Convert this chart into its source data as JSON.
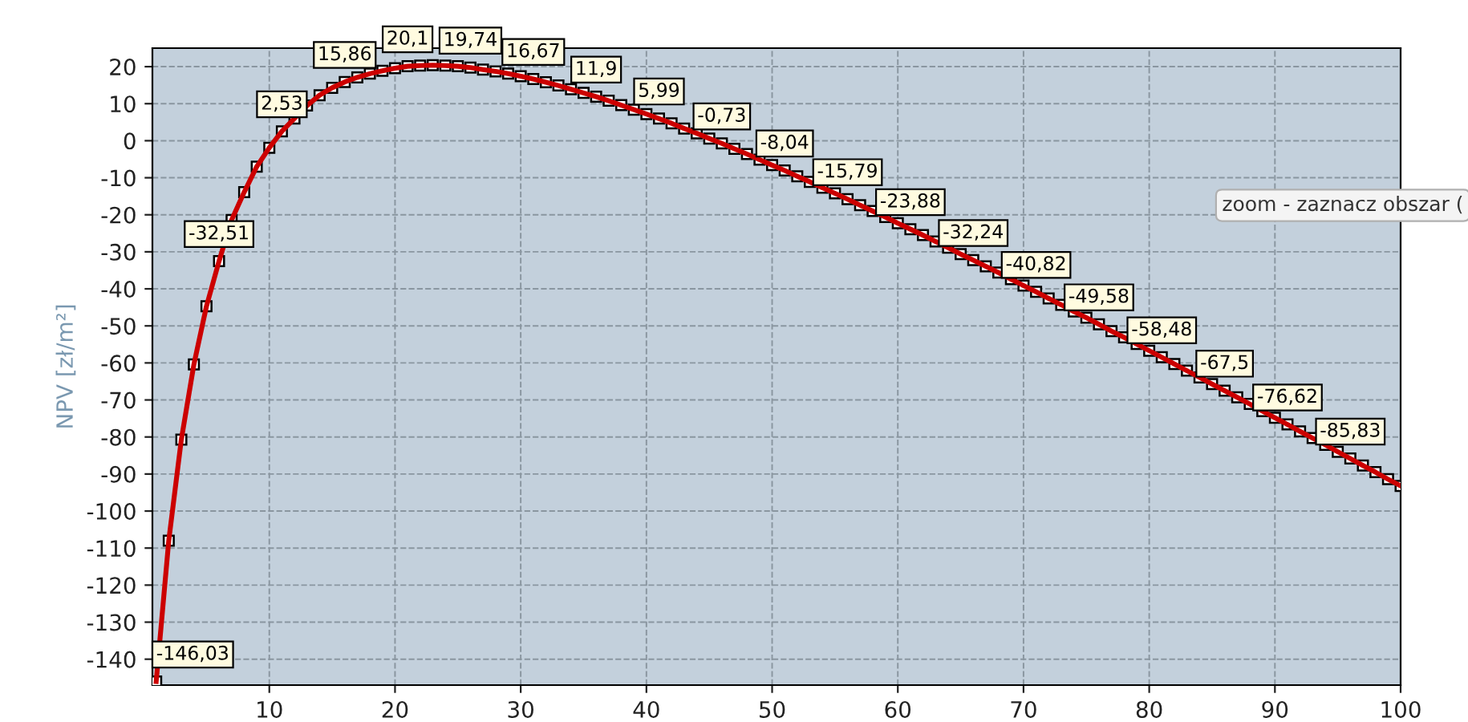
{
  "chart_data": {
    "type": "line",
    "ylabel": "NPV [zł/m²]",
    "x": [
      1,
      2,
      3,
      4,
      5,
      6,
      7,
      8,
      9,
      10,
      11,
      12,
      13,
      14,
      15,
      16,
      17,
      18,
      19,
      20,
      21,
      22,
      23,
      24,
      25,
      26,
      27,
      28,
      29,
      30,
      31,
      32,
      33,
      34,
      35,
      36,
      37,
      38,
      39,
      40,
      41,
      42,
      43,
      44,
      45,
      46,
      47,
      48,
      49,
      50,
      51,
      52,
      53,
      54,
      55,
      56,
      57,
      58,
      59,
      60,
      61,
      62,
      63,
      64,
      65,
      66,
      67,
      68,
      69,
      70,
      71,
      72,
      73,
      74,
      75,
      76,
      77,
      78,
      79,
      80,
      81,
      82,
      83,
      84,
      85,
      86,
      87,
      88,
      89,
      90,
      91,
      92,
      93,
      94,
      95,
      96,
      97,
      98,
      99,
      100
    ],
    "series": [
      {
        "color": "#cc0000",
        "values": [
          -146.03,
          -108.0,
          -80.7,
          -60.4,
          -44.7,
          -32.51,
          -21.4,
          -13.9,
          -7.0,
          -1.9,
          2.53,
          6.0,
          9.5,
          12.3,
          14.3,
          15.86,
          17.1,
          18.1,
          18.9,
          19.6,
          20.1,
          20.3,
          20.4,
          20.3,
          20.1,
          19.74,
          19.2,
          18.7,
          18.1,
          17.4,
          16.67,
          15.8,
          14.9,
          13.9,
          12.9,
          11.9,
          10.8,
          9.6,
          8.4,
          7.2,
          5.99,
          4.7,
          3.3,
          2.0,
          0.6,
          -0.73,
          -2.2,
          -3.6,
          -5.1,
          -6.6,
          -8.04,
          -9.6,
          -11.1,
          -12.7,
          -14.2,
          -15.79,
          -17.4,
          -19.0,
          -20.6,
          -22.3,
          -23.88,
          -25.5,
          -27.2,
          -28.9,
          -30.6,
          -32.24,
          -33.9,
          -35.6,
          -37.4,
          -39.1,
          -40.82,
          -42.6,
          -44.3,
          -46.1,
          -47.8,
          -49.58,
          -51.4,
          -53.1,
          -54.9,
          -56.7,
          -58.48,
          -60.3,
          -62.1,
          -63.9,
          -65.7,
          -67.5,
          -69.3,
          -71.1,
          -73.0,
          -74.8,
          -76.62,
          -78.5,
          -80.3,
          -82.1,
          -84.0,
          -85.83,
          -87.7,
          -89.5,
          -91.4,
          -93.2
        ],
        "value_labels": [
          "-146,03",
          null,
          null,
          null,
          null,
          "-32,51",
          null,
          null,
          null,
          null,
          "2,53",
          null,
          null,
          null,
          null,
          "15,86",
          null,
          null,
          null,
          null,
          "20,1",
          null,
          null,
          null,
          null,
          "19,74",
          null,
          null,
          null,
          null,
          "16,67",
          null,
          null,
          null,
          null,
          "11,9",
          null,
          null,
          null,
          null,
          "5,99",
          null,
          null,
          null,
          null,
          "-0,73",
          null,
          null,
          null,
          null,
          "-8,04",
          null,
          null,
          null,
          null,
          "-15,79",
          null,
          null,
          null,
          null,
          "-23,88",
          null,
          null,
          null,
          null,
          "-32,24",
          null,
          null,
          null,
          null,
          "-40,82",
          null,
          null,
          null,
          null,
          "-49,58",
          null,
          null,
          null,
          null,
          "-58,48",
          null,
          null,
          null,
          null,
          "-67,5",
          null,
          null,
          null,
          null,
          "-76,62",
          null,
          null,
          null,
          null,
          "-85,83",
          null,
          null,
          null,
          null
        ]
      }
    ],
    "xlim": [
      0.7,
      100
    ],
    "xticks": [
      10,
      20,
      30,
      40,
      50,
      60,
      70,
      80,
      90,
      100
    ],
    "ylim": [
      -147,
      25
    ],
    "yticks": [
      20,
      10,
      0,
      -10,
      -20,
      -30,
      -40,
      -50,
      -60,
      -70,
      -80,
      -90,
      -100,
      -110,
      -120,
      -130,
      -140
    ],
    "grid": true,
    "marker": "square",
    "line_style": "solid",
    "legend": false,
    "annotations": [
      "zoom - zaznacz obszar ("
    ]
  }
}
